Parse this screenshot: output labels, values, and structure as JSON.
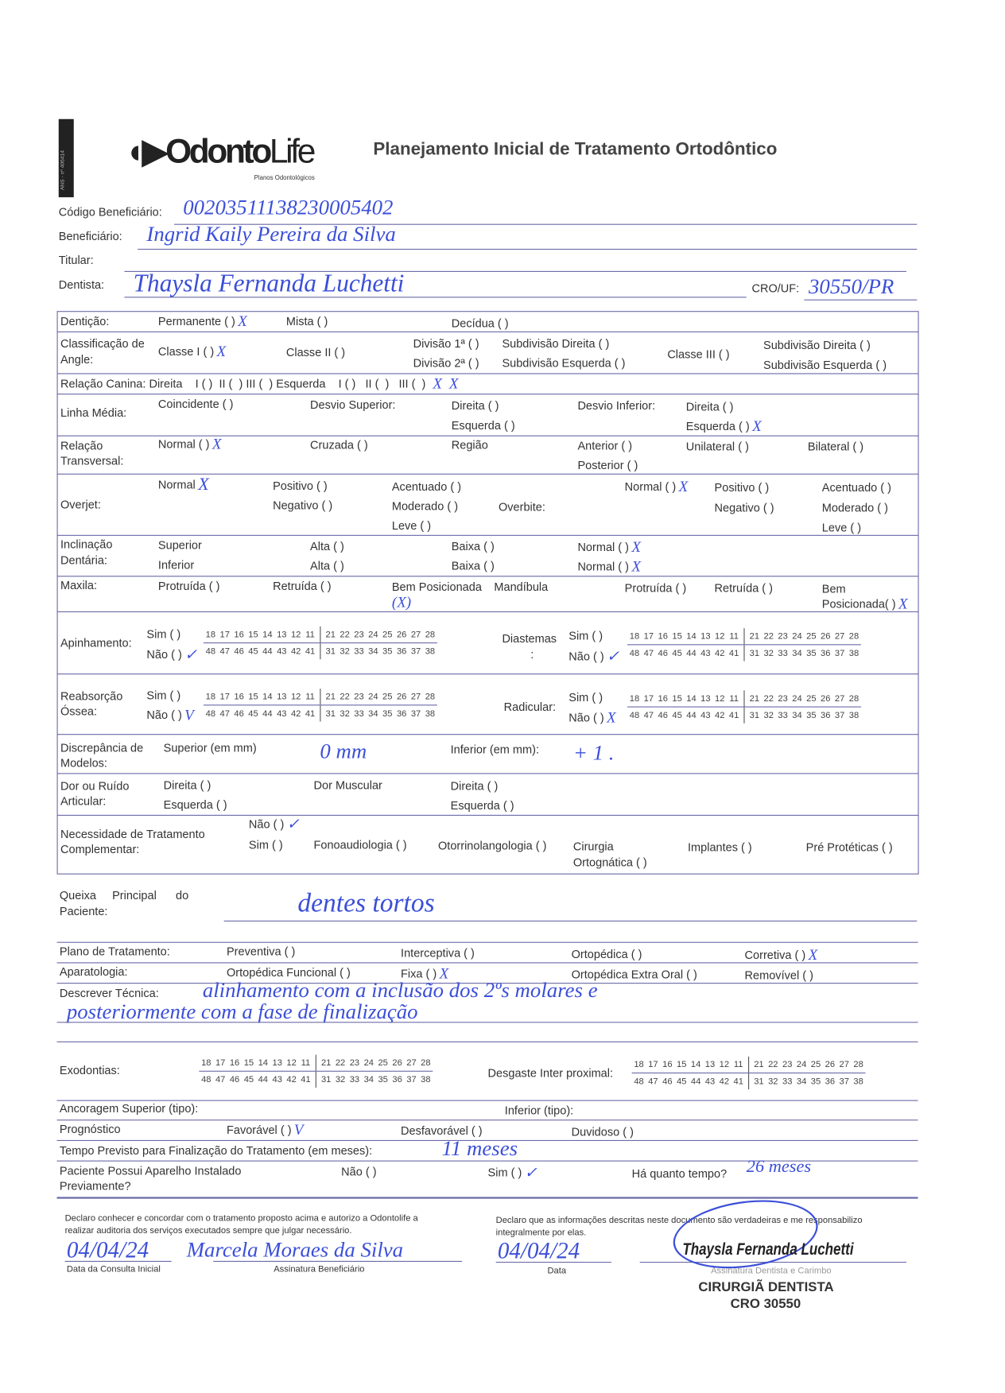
{
  "header": {
    "ans": "ANS - nº 406414",
    "logo_main": "Odonto",
    "logo_life": "Life",
    "logo_sub": "Planos Odontológicos",
    "title": "Planejamento Inicial de Tratamento Ortodôntico"
  },
  "patient": {
    "codigo_label": "Código Beneficiário:",
    "codigo_value": "00203511138230005402",
    "beneficiario_label": "Beneficiário:",
    "beneficiario_value": "Ingrid Kaily Pereira da Silva",
    "titular_label": "Titular:",
    "dentista_label": "Dentista:",
    "dentista_value": "Thaysla Fernanda Luchetti",
    "cro_label": "CRO/UF:",
    "cro_value": "30550/PR"
  },
  "denticao": {
    "label": "Dentição:",
    "permanente": "Permanente ( )",
    "mista": "Mista ( )",
    "decidua": "Decídua ( )",
    "mark": "X"
  },
  "angle": {
    "label1": "Classificação de",
    "label2": "Angle:",
    "classe1": "Classe I ( )",
    "classe2": "Classe II ( )",
    "div1": "Divisão 1ª ( )",
    "div2": "Divisão 2ª ( )",
    "sub_dir": "Subdivisão Direita ( )",
    "sub_esq": "Subdivisão Esquerda ( )",
    "classe3": "Classe III ( )",
    "sub_dir3": "Subdivisão Direita ( )",
    "sub_esq3": "Subdivisão Esquerda ( )",
    "mark": "X"
  },
  "canina": {
    "text": "Relação Canina: Direita    I ( )  II (  ) III (  ) Esquerda    I ( )   II (  )   III (  )",
    "mark_dir": "X",
    "mark_esq": "X"
  },
  "linha_media": {
    "label": "Linha Média:",
    "coincidente": "Coincidente (  )",
    "desvio_sup": "Desvio Superior:",
    "direita": "Direita (  )",
    "esquerda": "Esquerda (  )",
    "desvio_inf": "Desvio Inferior:",
    "direita2": "Direita (  )",
    "esquerda2": "Esquerda ( )",
    "mark": "X"
  },
  "transversal": {
    "label1": "Relação",
    "label2": "Transversal:",
    "normal": "Normal ( )",
    "cruzada": "Cruzada (  )",
    "regiao": "Região",
    "anterior": "Anterior (  )",
    "posterior": "Posterior (  )",
    "unilateral": "Unilateral (  )",
    "bilateral": "Bilateral (  )",
    "mark": "X"
  },
  "overjet": {
    "label": "Overjet:",
    "normal": "Normal",
    "positivo": "Positivo (  )",
    "negativo": "Negativo (  )",
    "acentuado": "Acentuado (  )",
    "moderado": "Moderado (  )",
    "leve": "Leve (  )",
    "overbite": "Overbite:",
    "ob_normal": "Normal ( )",
    "ob_positivo": "Positivo (  )",
    "ob_negativo": "Negativo (  )",
    "ob_acentuado": "Acentuado (  )",
    "ob_moderado": "Moderado (  )",
    "ob_leve": "Leve (  )",
    "mark": "X",
    "ob_mark": "X"
  },
  "inclinacao": {
    "label1": "Inclinação",
    "label2": "Dentária:",
    "superior": "Superior",
    "inferior": "Inferior",
    "alta1": "Alta (  )",
    "alta2": "Alta (  )",
    "baixa1": "Baixa (  )",
    "baixa2": "Baixa (  )",
    "normal1": "Normal ( )",
    "normal2": "Normal ( )",
    "mark1": "X",
    "mark2": "X"
  },
  "maxila": {
    "label": "Maxila:",
    "protruida": "Protruída (  )",
    "retruida": "Retruída (  )",
    "bem": "Bem Posicionada",
    "bem_mark": "(X)",
    "mandibula": "Mandíbula",
    "m_protruida": "Protruída (  )",
    "m_retruida": "Retruída (  )",
    "m_bem1": "Bem",
    "m_bem2": "Posicionada( )",
    "m_mark": "X"
  },
  "teeth": {
    "upper_right": [
      "18",
      "17",
      "16",
      "15",
      "14",
      "13",
      "12",
      "11"
    ],
    "upper_left": [
      "21",
      "22",
      "23",
      "24",
      "25",
      "26",
      "27",
      "28"
    ],
    "lower_right": [
      "48",
      "47",
      "46",
      "45",
      "44",
      "43",
      "42",
      "41"
    ],
    "lower_left": [
      "31",
      "32",
      "33",
      "34",
      "35",
      "36",
      "37",
      "38"
    ]
  },
  "apinhamento": {
    "label": "Apinhamento:",
    "sim": "Sim (  )",
    "nao": "Não ( )",
    "mark": "✓",
    "diastemas": "Diastemas",
    "d_colon": ":",
    "d_sim": "Sim (  )",
    "d_nao": "Não ( )",
    "d_mark": "✓"
  },
  "reabsorcao": {
    "label1": "Reabsorção",
    "label2": "Óssea:",
    "sim": "Sim (  )",
    "nao": "Não ( )",
    "mark": "V",
    "radicular": "Radicular:",
    "r_sim": "Sim (  )",
    "r_nao": "Não ( )",
    "r_mark": "X"
  },
  "discrepancia": {
    "label1": "Discrepância de",
    "label2": "Modelos:",
    "superior": "Superior (em mm)",
    "superior_value": "0 mm",
    "inferior": "Inferior (em mm):",
    "inferior_value": "+ 1 ."
  },
  "dor": {
    "label1": "Dor ou Ruído",
    "label2": "Articular:",
    "direita": "Direita (  )",
    "esquerda": "Esquerda (  )",
    "muscular": "Dor Muscular",
    "m_direita": "Direita (  )",
    "m_esquerda": "Esquerda (  )"
  },
  "necessidade": {
    "label1": "Necessidade de Tratamento",
    "label2": "Complementar:",
    "nao": "Não ( )",
    "nao_mark": "✓",
    "sim": "Sim (  )",
    "fono": "Fonoaudiologia (  )",
    "otorrino": "Otorrinolangologia (  )",
    "cirurgia1": "Cirurgia",
    "cirurgia2": "Ortognática (  )",
    "implantes": "Implantes (  )",
    "proteticas": "Pré Protéticas (  )"
  },
  "queixa": {
    "label1": "Queixa     Principal      do",
    "label2": "Paciente:",
    "value": "dentes tortos"
  },
  "plano": {
    "label": "Plano de Tratamento:",
    "preventiva": "Preventiva (  )",
    "interceptiva": "Interceptiva (  )",
    "ortopedica": "Ortopédica (  )",
    "corretiva": "Corretiva ( )",
    "mark": "X"
  },
  "aparatologia": {
    "label": "Aparatologia:",
    "funcional": "Ortopédica Funcional (  )",
    "fixa": "Fixa ( )",
    "fixa_mark": "X",
    "extra_oral": "Ortopédica Extra Oral (  )",
    "removivel": "Removível (  )"
  },
  "tecnica": {
    "label": "Descrever Técnica:",
    "line1": "alinhamento com a inclusão dos 2ºs molares e",
    "line2": "posteriormente com a fase de finalização"
  },
  "exodontias": {
    "label": "Exodontias:",
    "desgaste": "Desgaste Inter proximal:"
  },
  "ancoragem": {
    "superior": "Ancoragem Superior (tipo):",
    "inferior": "Inferior (tipo):"
  },
  "prognostico": {
    "label": "Prognóstico",
    "favoravel": "Favorável ( )",
    "fav_mark": "V",
    "desfavoravel": "Desfavorável (  )",
    "duvidoso": "Duvidoso (  )"
  },
  "tempo": {
    "label": "Tempo Previsto para Finalização do Tratamento (em meses):",
    "value": "11 meses"
  },
  "aparelho": {
    "label1": "Paciente Possui Aparelho Instalado",
    "label2": "Previamente?",
    "nao": "Não (  )",
    "sim": "Sim ( )",
    "sim_mark": "✓",
    "quanto": "Há quanto tempo?",
    "quanto_value": "26 meses"
  },
  "declaracao": {
    "left_text1": "Declaro conhecer e concordar com o tratamento proposto acima e autorizo a Odontolife a",
    "left_text2": "realizar auditoria dos serviços executados sempre que julgar necessário.",
    "date1": "04/04/24",
    "sig_benef": "Marcela Moraes da Silva",
    "label_data_consulta": "Data da Consulta Inicial",
    "label_assinatura_benef": "Assinatura Beneficiário",
    "right_text1": "Declaro que as informações descritas neste documento são verdadeiras e me responsabilizo",
    "right_text2": "integralmente por elas.",
    "date2": "04/04/24",
    "label_data": "Data",
    "label_assinatura_dentista": "Assinatura Dentista e Carimbo",
    "stamp_name": "Thaysla Fernanda Luchetti",
    "stamp_title": "CIRURGIÃ DENTISTA",
    "stamp_cro": "CRO 30550"
  },
  "colors": {
    "ink": "#3b4fd8",
    "lines": "#6a6aa8",
    "text": "#333333"
  }
}
